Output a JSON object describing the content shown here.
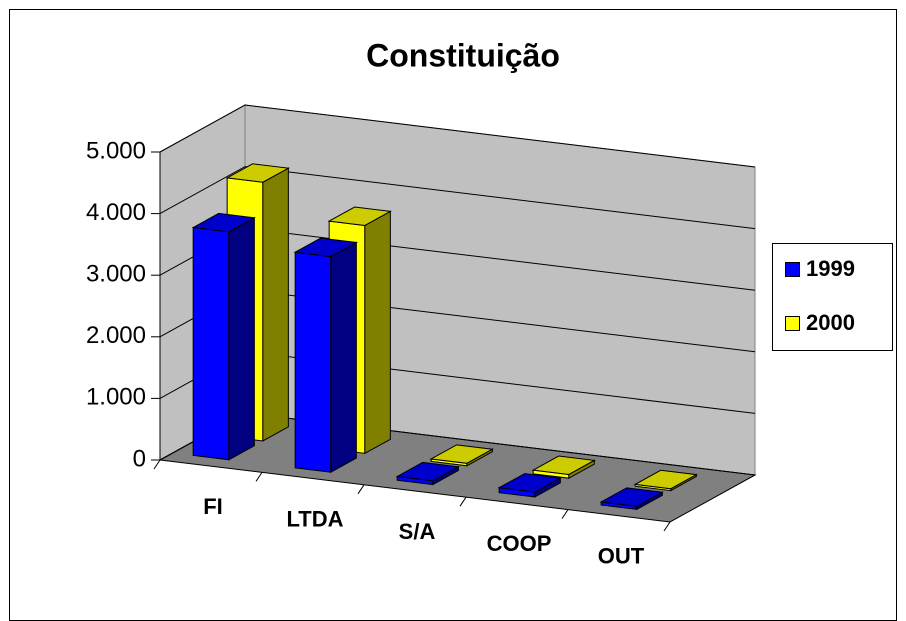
{
  "chart_data": {
    "type": "bar3d",
    "title": "Constituição",
    "categories": [
      "FI",
      "LTDA",
      "S/A",
      "COOP",
      "OUT"
    ],
    "series": [
      {
        "name": "1999",
        "color": "#0000ff",
        "values": [
          3700,
          3500,
          60,
          80,
          50
        ]
      },
      {
        "name": "2000",
        "color": "#ffff00",
        "values": [
          4200,
          3700,
          40,
          60,
          30
        ]
      }
    ],
    "ylim": [
      0,
      5000
    ],
    "yticks": [
      0,
      {
        "value": 1000,
        "label": "1.000"
      },
      {
        "value": 2000,
        "label": "2.000"
      },
      {
        "value": 3000,
        "label": "3.000"
      },
      {
        "value": 4000,
        "label": "4.000"
      },
      {
        "value": 5000,
        "label": "5.000"
      }
    ],
    "grid": true,
    "legend": "right"
  }
}
